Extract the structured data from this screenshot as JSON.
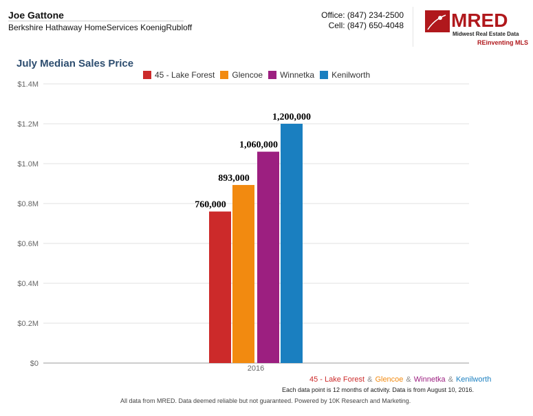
{
  "header": {
    "agent_name": "Joe Gattone",
    "company": "Berkshire Hathaway HomeServices KoenigRubloff",
    "office": "Office: (847) 234-2500",
    "cell": "Cell: (847) 650-4048",
    "logo_text": "MRED",
    "logo_sub": "Midwest Real Estate Data",
    "logo_tag": "REinventing MLS"
  },
  "chart_data": {
    "type": "bar",
    "title": "July Median Sales Price",
    "categories": [
      "2016"
    ],
    "series": [
      {
        "name": "45 - Lake Forest",
        "values": [
          760000
        ],
        "color": "#cc2a2a",
        "label": "760,000"
      },
      {
        "name": "Glencoe",
        "values": [
          893000
        ],
        "color": "#f28a10",
        "label": "893,000"
      },
      {
        "name": "Winnetka",
        "values": [
          1060000
        ],
        "color": "#9c1f80",
        "label": "1,060,000"
      },
      {
        "name": "Kenilworth",
        "values": [
          1200000
        ],
        "color": "#1a7fc0",
        "label": "1,200,000"
      }
    ],
    "ylim": [
      0,
      1400000
    ],
    "yticks": [
      "$0",
      "$0.2M",
      "$0.4M",
      "$0.6M",
      "$0.8M",
      "$1.0M",
      "$1.2M",
      "$1.4M"
    ],
    "grid": true,
    "legend": "top"
  },
  "footer": {
    "sep": "&",
    "note": "Each data point is 12 months of activity. Data is from August 10, 2016.",
    "disclaimer": "All data from MRED. Data deemed reliable but not guaranteed. Powered by 10K Research and Marketing."
  }
}
